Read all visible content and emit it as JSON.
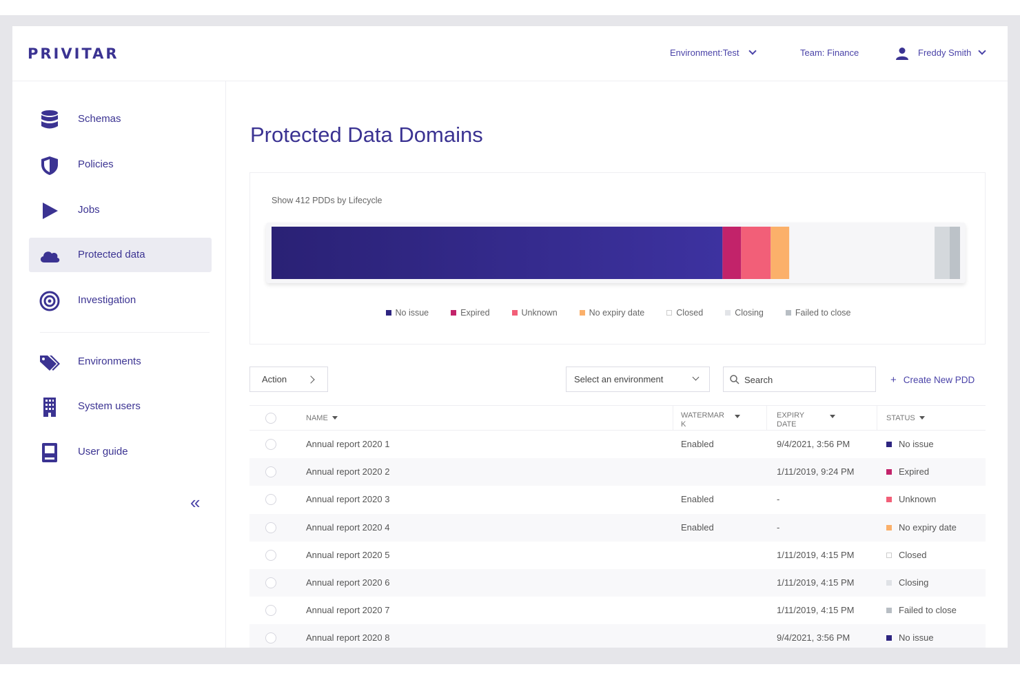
{
  "app": {
    "logo": "PRIVITAR"
  },
  "header": {
    "environment": "Environment:Test",
    "team": "Team: Finance",
    "user": "Freddy Smith"
  },
  "sidebar": {
    "items": [
      {
        "label": "Schemas",
        "icon": "database-icon"
      },
      {
        "label": "Policies",
        "icon": "shield-icon"
      },
      {
        "label": "Jobs",
        "icon": "play-icon"
      },
      {
        "label": "Protected data",
        "icon": "cloud-icon",
        "active": true
      },
      {
        "label": "Investigation",
        "icon": "target-icon"
      },
      {
        "label": "Environments",
        "icon": "tags-icon"
      },
      {
        "label": "System users",
        "icon": "building-icon"
      },
      {
        "label": "User guide",
        "icon": "book-icon"
      }
    ],
    "collapse_label": "«"
  },
  "main": {
    "title": "Protected Data Domains",
    "lifecycle": {
      "label": "Show 412 PDDs by Lifecycle",
      "segments": [
        {
          "name": "No issue",
          "fraction": 0.655,
          "color": "#2e2580"
        },
        {
          "name": "Expired",
          "fraction": 0.027,
          "color": "#c2236a"
        },
        {
          "name": "Unknown",
          "fraction": 0.043,
          "color": "#f25f78"
        },
        {
          "name": "No expiry date",
          "fraction": 0.027,
          "color": "#fbb06a"
        },
        {
          "name": "Closed",
          "fraction": 0.211,
          "color": "#f6f6f8"
        },
        {
          "name": "Closing",
          "fraction": 0.022,
          "color": "#d4d8dc"
        },
        {
          "name": "Failed to close",
          "fraction": 0.015,
          "color": "#bcc2c8"
        }
      ]
    },
    "toolbar": {
      "action_label": "Action",
      "env_select_value": "Select an environment",
      "search_placeholder": "Search",
      "create_label": "Create New PDD"
    },
    "table": {
      "headers": {
        "name": "NAME",
        "watermark": "WATERMAR\nK",
        "expiry": "EXPIRY\nDATE",
        "status": "STATUS"
      },
      "rows": [
        {
          "name": "Annual report 2020 1",
          "watermark": "Enabled",
          "expiry": "9/4/2021, 3:56 PM",
          "status": "No issue",
          "status_color": "#2e2580"
        },
        {
          "name": "Annual report 2020 2",
          "watermark": "",
          "expiry": "1/11/2019, 9:24 PM",
          "status": "Expired",
          "status_color": "#c2236a"
        },
        {
          "name": "Annual report 2020 3",
          "watermark": "Enabled",
          "expiry": "-",
          "status": "Unknown",
          "status_color": "#f25f78"
        },
        {
          "name": "Annual report 2020 4",
          "watermark": "Enabled",
          "expiry": "-",
          "status": "No expiry date",
          "status_color": "#fbb06a"
        },
        {
          "name": "Annual report 2020 5",
          "watermark": "",
          "expiry": "1/11/2019, 4:15 PM",
          "status": "Closed",
          "status_color": "#ffffff"
        },
        {
          "name": "Annual report 2020 6",
          "watermark": "",
          "expiry": "1/11/2019, 4:15 PM",
          "status": "Closing",
          "status_color": "#dfe2e6"
        },
        {
          "name": "Annual report 2020 7",
          "watermark": "",
          "expiry": "1/11/2019, 4:15 PM",
          "status": "Failed to close",
          "status_color": "#b8bec4"
        },
        {
          "name": "Annual report 2020 8",
          "watermark": "",
          "expiry": "9/4/2021, 3:56 PM",
          "status": "No issue",
          "status_color": "#2e2580"
        }
      ]
    }
  }
}
